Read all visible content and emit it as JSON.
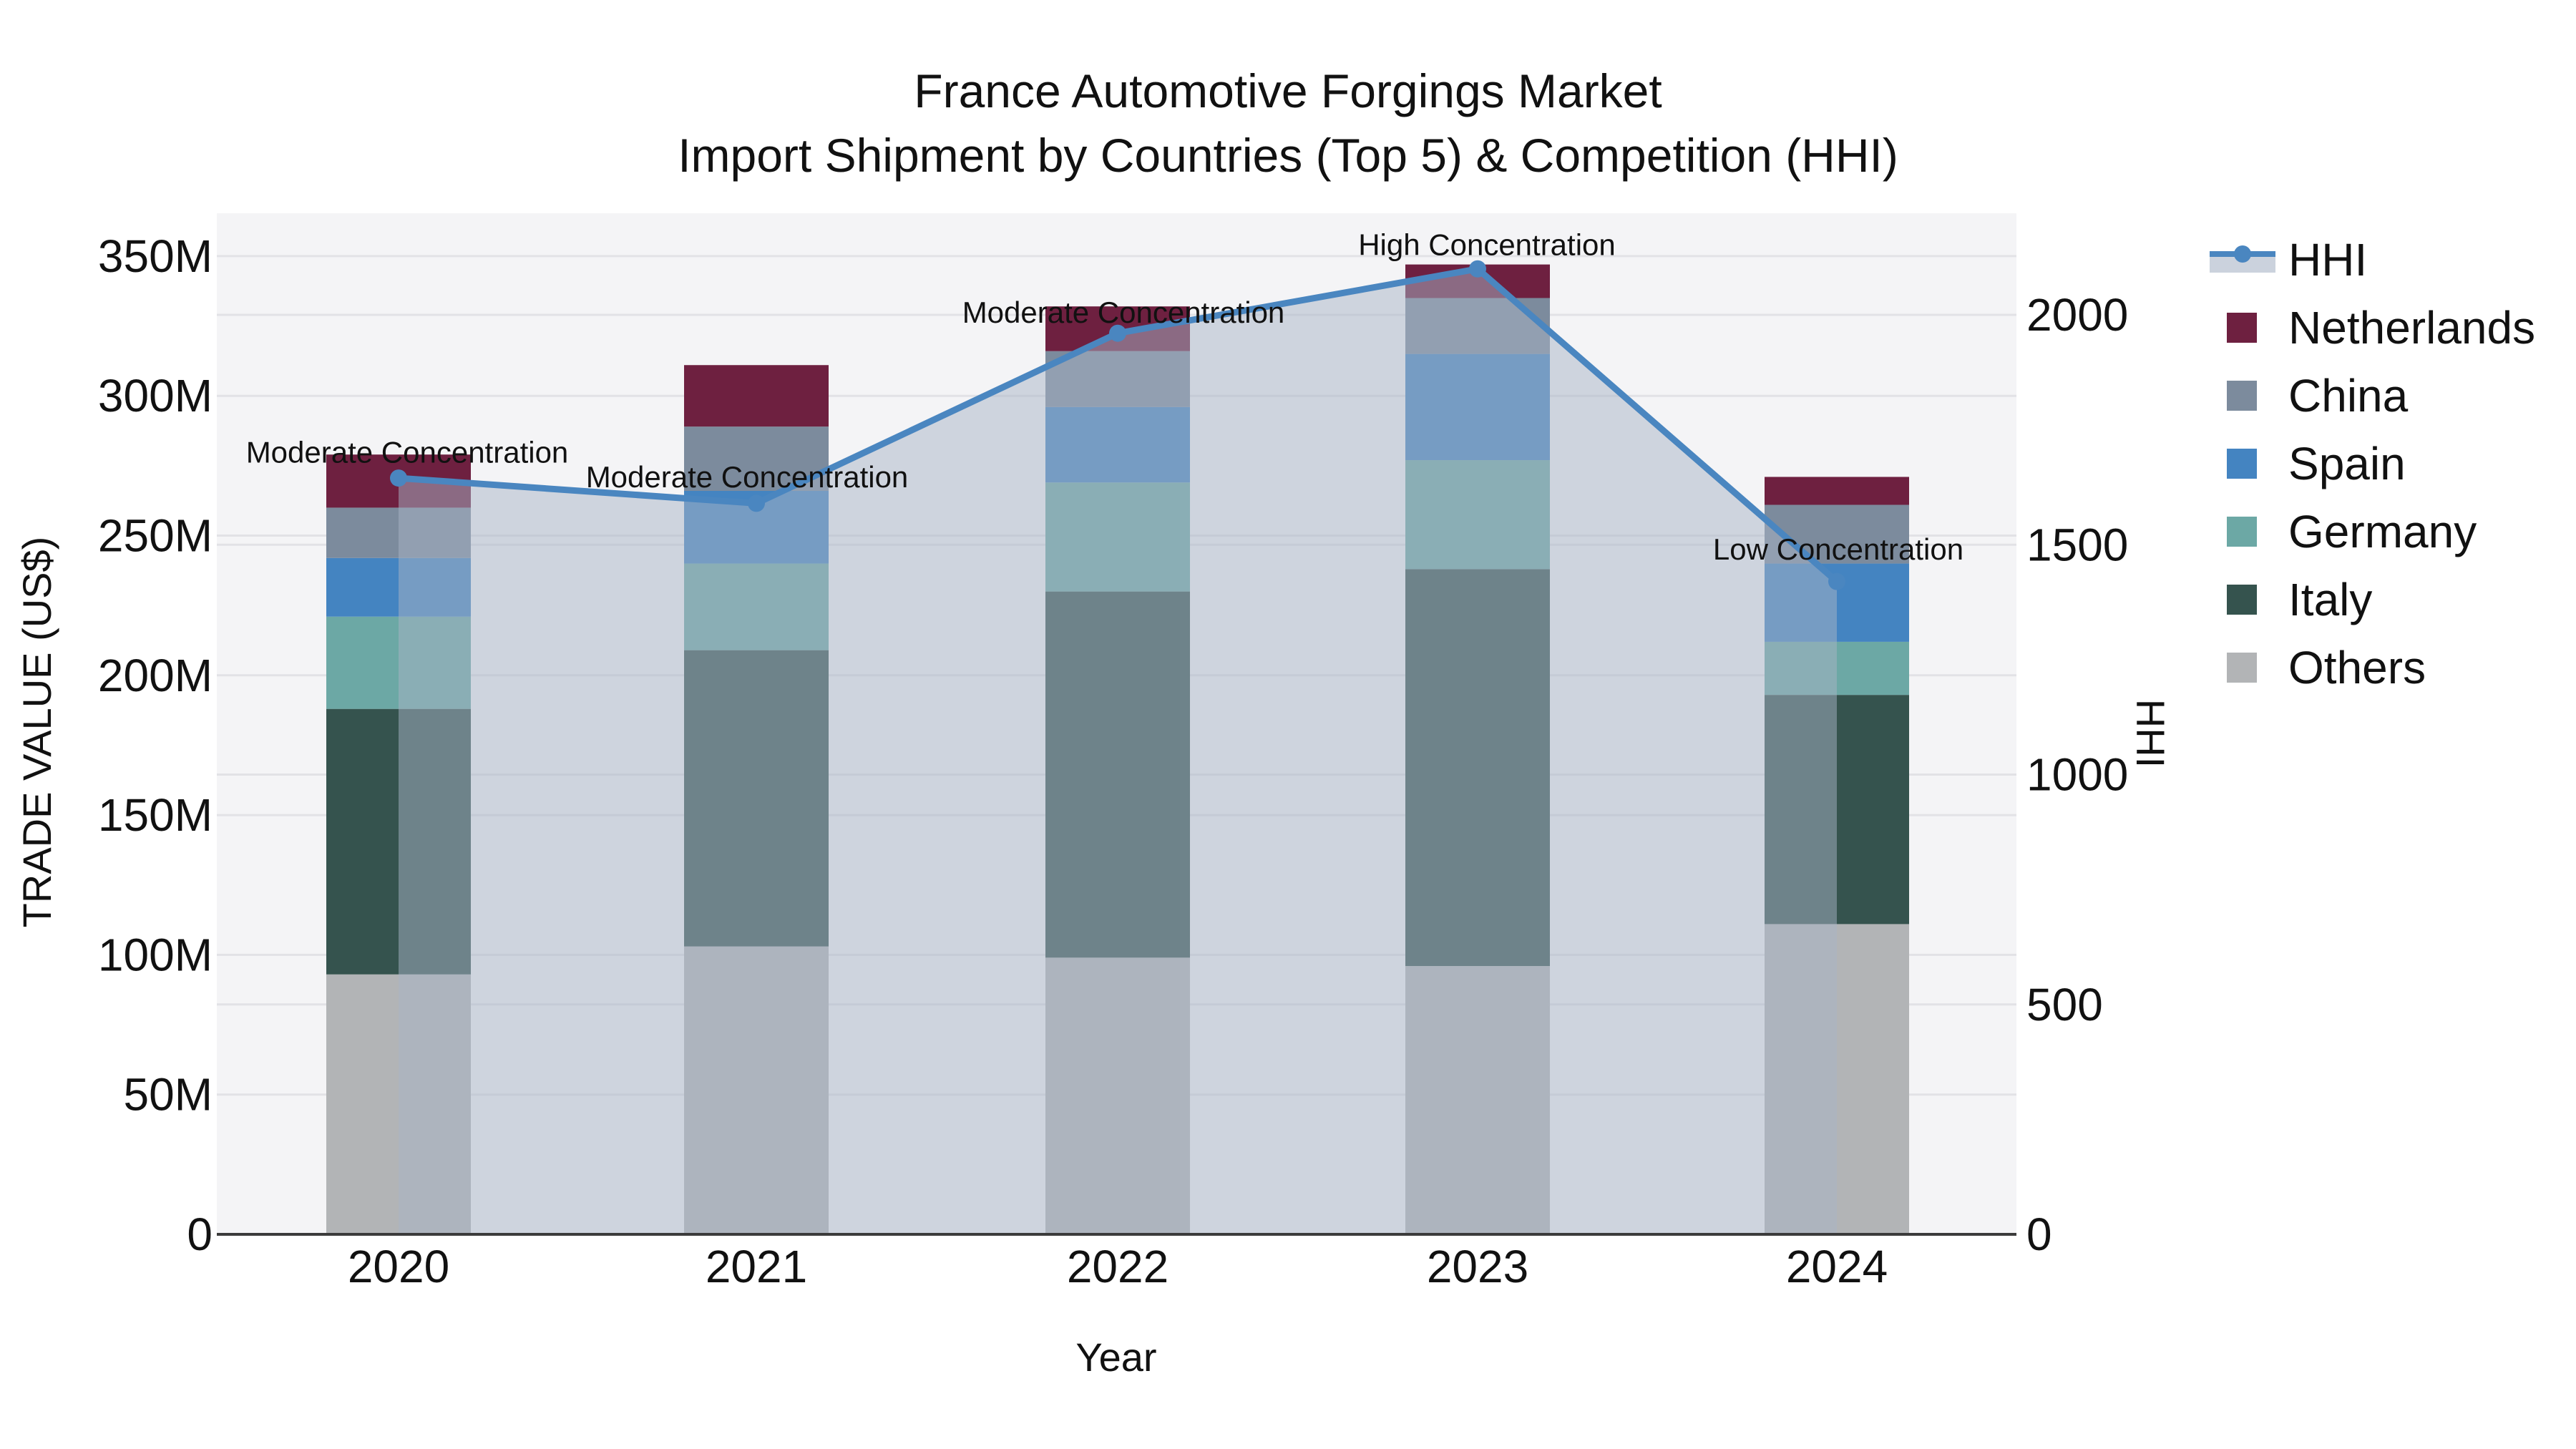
{
  "title": {
    "line1": "France Automotive Forgings Market",
    "line2": "Import Shipment by Countries (Top 5) & Competition (HHI)"
  },
  "axes": {
    "x_title": "Year",
    "y_left_title": "TRADE VALUE (US$)",
    "y_right_title": "HHI",
    "y_left_tick_labels": [
      "0",
      "50M",
      "100M",
      "150M",
      "200M",
      "250M",
      "300M",
      "350M"
    ],
    "y_right_tick_labels": [
      "0",
      "500",
      "1000",
      "1500",
      "2000"
    ],
    "x_tick_labels": [
      "2020",
      "2021",
      "2022",
      "2023",
      "2024"
    ]
  },
  "legend": {
    "items": [
      {
        "label": "HHI",
        "type": "line",
        "color": "#4a86c0"
      },
      {
        "label": "Netherlands",
        "type": "swatch",
        "color": "#6e2040"
      },
      {
        "label": "China",
        "type": "swatch",
        "color": "#7c8b9d"
      },
      {
        "label": "Spain",
        "type": "swatch",
        "color": "#4484c1"
      },
      {
        "label": "Germany",
        "type": "swatch",
        "color": "#6ca8a5"
      },
      {
        "label": "Italy",
        "type": "swatch",
        "color": "#35534e"
      },
      {
        "label": "Others",
        "type": "swatch",
        "color": "#b2b4b6"
      }
    ]
  },
  "annotations": [
    {
      "year": "2020",
      "text": "Moderate Concentration"
    },
    {
      "year": "2021",
      "text": "Moderate Concentration"
    },
    {
      "year": "2022",
      "text": "Moderate Concentration"
    },
    {
      "year": "2023",
      "text": "High Concentration"
    },
    {
      "year": "2024",
      "text": "Low Concentration"
    }
  ],
  "colors": {
    "plot_bg": "#f4f4f6",
    "gridline": "#e2e2e6",
    "axis_line": "#3b3b3b",
    "hhi_line": "#4a86c0",
    "hhi_area": "#a8b4c6",
    "text": "#111111"
  },
  "chart_data": {
    "type": "bar+line",
    "title": "France Automotive Forgings Market — Import Shipment by Countries (Top 5) & Competition (HHI)",
    "categories": [
      "2020",
      "2021",
      "2022",
      "2023",
      "2024"
    ],
    "bar_unit": "Million US$",
    "stack_order_note": "series listed bottom-to-top of the stacked bars",
    "series": [
      {
        "name": "Others",
        "color": "#b2b4b6",
        "values": [
          93,
          103,
          99,
          96,
          111
        ]
      },
      {
        "name": "Italy",
        "color": "#35534e",
        "values": [
          95,
          106,
          131,
          142,
          82
        ]
      },
      {
        "name": "Germany",
        "color": "#6ca8a5",
        "values": [
          33,
          31,
          39,
          39,
          19
        ]
      },
      {
        "name": "Spain",
        "color": "#4484c1",
        "values": [
          21,
          26,
          27,
          38,
          28
        ]
      },
      {
        "name": "China",
        "color": "#7c8b9d",
        "values": [
          18,
          23,
          20,
          20,
          21
        ]
      },
      {
        "name": "Netherlands",
        "color": "#6e2040",
        "values": [
          19,
          22,
          16,
          12,
          10
        ]
      }
    ],
    "bar_totals": [
      279,
      311,
      332,
      347,
      271
    ],
    "hhi_line": {
      "name": "HHI",
      "color": "#4a86c0",
      "values": [
        1645,
        1590,
        1960,
        2100,
        1420
      ]
    },
    "xlabel": "Year",
    "ylabel_left": "TRADE VALUE (US$)",
    "ylabel_right": "HHI",
    "ylim_left_millions": [
      0,
      365
    ],
    "ylim_right": [
      0,
      2220
    ],
    "left_tick_step_millions": 50,
    "right_tick_step": 500,
    "grid": "horizontal, both axes",
    "legend_position": "right"
  }
}
